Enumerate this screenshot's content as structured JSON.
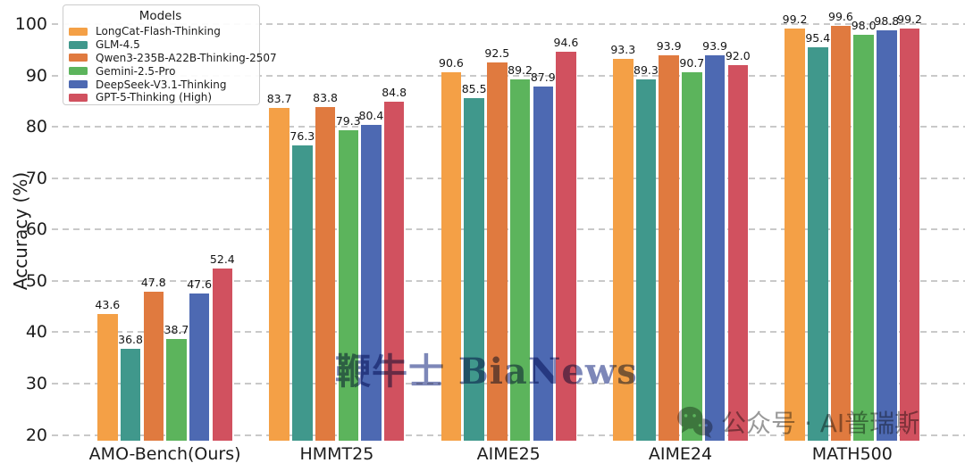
{
  "chart_data": {
    "type": "bar",
    "title": "",
    "ylabel": "Accuracy (%)",
    "ylim": [
      20,
      100
    ],
    "yticks": [
      100,
      90,
      80,
      70,
      60,
      50,
      40,
      30,
      20
    ],
    "grid": "horizontal-dashed",
    "legend_title": "Models",
    "legend_position": "upper-left",
    "categories": [
      "AMO-Bench(Ours)",
      "HMMT25",
      "AIME25",
      "AIME24",
      "MATH500"
    ],
    "series": [
      {
        "name": "LongCat-Flash-Thinking",
        "color": "#F4A046",
        "values": [
          43.6,
          83.7,
          90.6,
          93.3,
          99.2
        ]
      },
      {
        "name": "GLM-4.5",
        "color": "#40988C",
        "values": [
          36.8,
          76.3,
          85.5,
          89.3,
          95.4
        ]
      },
      {
        "name": "Qwen3-235B-A22B-Thinking-2507",
        "color": "#E07A3F",
        "values": [
          47.8,
          83.8,
          92.5,
          93.9,
          99.6
        ]
      },
      {
        "name": "Gemini-2.5-Pro",
        "color": "#5CB45C",
        "values": [
          38.7,
          79.3,
          89.2,
          90.7,
          98.0
        ]
      },
      {
        "name": "DeepSeek-V3.1-Thinking",
        "color": "#4D69B2",
        "values": [
          47.6,
          80.4,
          87.9,
          93.9,
          98.8
        ]
      },
      {
        "name": "GPT-5-Thinking (High)",
        "color": "#D1515F",
        "values": [
          52.4,
          84.8,
          94.6,
          92.0,
          99.2
        ]
      }
    ]
  },
  "watermarks": {
    "center_text": "鞭牛士 BiaNews",
    "bottom_right_text": "公众号 · AI普瑞斯",
    "bottom_right_icon": "wechat-icon"
  }
}
